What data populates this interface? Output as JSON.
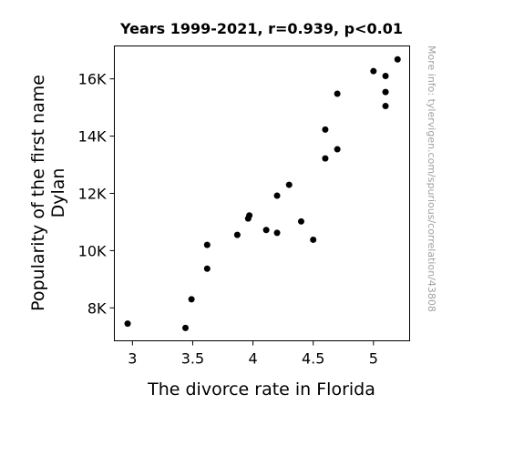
{
  "chart_data": {
    "type": "scatter",
    "title": "Years 1999-2021, r=0.939, p<0.01",
    "xlabel": "The divorce rate in Florida",
    "ylabel_lines": [
      "Popularity of the first name",
      "Dylan"
    ],
    "side_note": "More info: tylervigen.com/spurious/correlation/43808",
    "xlim": [
      2.85,
      5.3
    ],
    "ylim": [
      6850,
      17150
    ],
    "xticks": [
      {
        "value": 3,
        "label": "3"
      },
      {
        "value": 3.5,
        "label": "3.5"
      },
      {
        "value": 4,
        "label": "4"
      },
      {
        "value": 4.5,
        "label": "4.5"
      },
      {
        "value": 5,
        "label": "5"
      }
    ],
    "yticks": [
      {
        "value": 8000,
        "label": "8K"
      },
      {
        "value": 10000,
        "label": "10K"
      },
      {
        "value": 12000,
        "label": "12K"
      },
      {
        "value": 14000,
        "label": "14K"
      },
      {
        "value": 16000,
        "label": "16K"
      }
    ],
    "grid": false,
    "point_color": "#000000",
    "points": [
      {
        "x": 2.96,
        "y": 7450
      },
      {
        "x": 3.44,
        "y": 7300
      },
      {
        "x": 3.49,
        "y": 8300
      },
      {
        "x": 3.62,
        "y": 9370
      },
      {
        "x": 3.62,
        "y": 10200
      },
      {
        "x": 3.87,
        "y": 10550
      },
      {
        "x": 3.96,
        "y": 11120
      },
      {
        "x": 3.97,
        "y": 11230
      },
      {
        "x": 4.11,
        "y": 10720
      },
      {
        "x": 4.2,
        "y": 10620
      },
      {
        "x": 4.2,
        "y": 11920
      },
      {
        "x": 4.3,
        "y": 12300
      },
      {
        "x": 4.4,
        "y": 11020
      },
      {
        "x": 4.5,
        "y": 10380
      },
      {
        "x": 4.6,
        "y": 13220
      },
      {
        "x": 4.6,
        "y": 14230
      },
      {
        "x": 4.7,
        "y": 13540
      },
      {
        "x": 4.7,
        "y": 15480
      },
      {
        "x": 5.0,
        "y": 16270
      },
      {
        "x": 5.1,
        "y": 16100
      },
      {
        "x": 5.1,
        "y": 15540
      },
      {
        "x": 5.1,
        "y": 15050
      },
      {
        "x": 5.2,
        "y": 16680
      }
    ]
  }
}
